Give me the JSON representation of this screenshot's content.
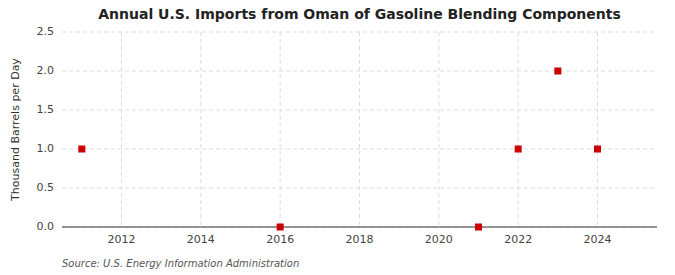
{
  "chart_data": {
    "type": "scatter",
    "title": "Annual U.S. Imports from Oman of Gasoline Blending Components",
    "ylabel": "Thousand Barrels per Day",
    "source": "Source: U.S. Energy Information Administration",
    "x": [
      2011,
      2016,
      2021,
      2022,
      2023,
      2024
    ],
    "values": [
      1.0,
      0.0,
      0.0,
      1.0,
      2.0,
      1.0
    ],
    "color": "#cc0000",
    "marker": "square",
    "xlim": [
      2010.5,
      2025.5
    ],
    "ylim": [
      0.0,
      2.5
    ],
    "xticks": [
      2012,
      2014,
      2016,
      2018,
      2020,
      2022,
      2024
    ],
    "yticks": [
      {
        "value": 0.0,
        "label": "0.0"
      },
      0.5,
      {
        "value": 1.0,
        "label": "1.0"
      },
      1.5,
      {
        "value": 2.0,
        "label": "2.0"
      },
      2.5
    ],
    "grid": true
  }
}
